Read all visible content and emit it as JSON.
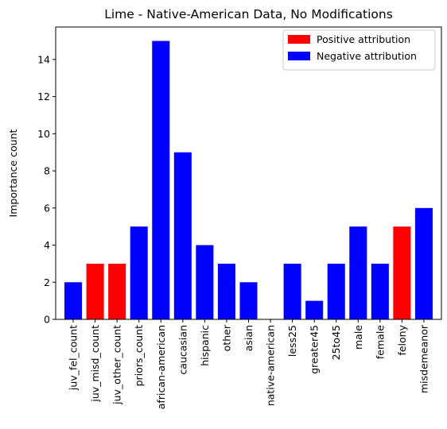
{
  "chart_data": {
    "type": "bar",
    "title": "Lime - Native-American Data, No Modifications",
    "xlabel": "",
    "ylabel": "Importance count",
    "ylim": [
      0,
      15.75
    ],
    "yticks": [
      0,
      2,
      4,
      6,
      8,
      10,
      12,
      14
    ],
    "grid": false,
    "legend_position": "top-right",
    "categories": [
      "juv_fel_count",
      "juv_misd_count",
      "juv_other_count",
      "priors_count",
      "african-american",
      "caucasian",
      "hispanic",
      "other",
      "asian",
      "native-american",
      "less25",
      "greater45",
      "25to45",
      "male",
      "female",
      "felony",
      "misdemeanor"
    ],
    "values": [
      2,
      3,
      3,
      5,
      15,
      9,
      4,
      3,
      2,
      0,
      3,
      1,
      3,
      5,
      3,
      5,
      6
    ],
    "attribution": [
      "negative",
      "positive",
      "positive",
      "negative",
      "negative",
      "negative",
      "negative",
      "negative",
      "negative",
      "negative",
      "negative",
      "negative",
      "negative",
      "negative",
      "negative",
      "positive",
      "negative"
    ],
    "legend": [
      {
        "key": "positive",
        "label": "Positive attribution",
        "color": "#ff0000"
      },
      {
        "key": "negative",
        "label": "Negative attribution",
        "color": "#0000ff"
      }
    ]
  }
}
